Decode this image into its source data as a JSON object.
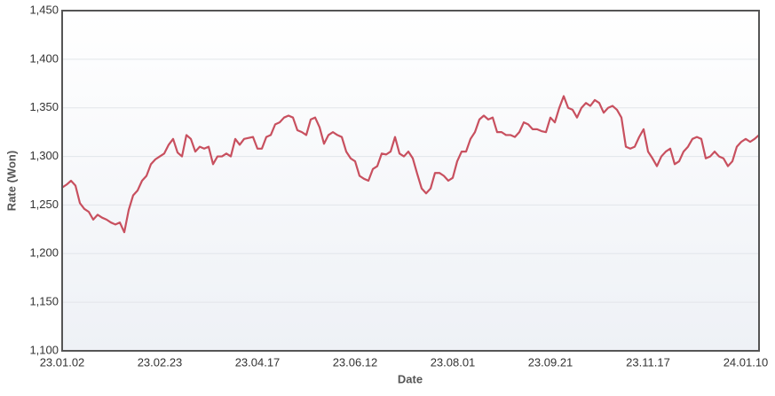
{
  "chart_data": {
    "type": "line",
    "x_label": "Date",
    "y_label": "Rate (Won)",
    "categories": [
      "23.01.02",
      null,
      null,
      null,
      null,
      null,
      null,
      null,
      null,
      null,
      null,
      null,
      null,
      null,
      null,
      null,
      null,
      null,
      null,
      null,
      null,
      null,
      "23.02.23",
      null,
      null,
      null,
      null,
      null,
      null,
      null,
      null,
      null,
      null,
      null,
      null,
      null,
      null,
      null,
      null,
      null,
      null,
      null,
      null,
      null,
      "23.04.17",
      null,
      null,
      null,
      null,
      null,
      null,
      null,
      null,
      null,
      null,
      null,
      null,
      null,
      null,
      null,
      null,
      null,
      null,
      null,
      null,
      null,
      "23.06.12",
      null,
      null,
      null,
      null,
      null,
      null,
      null,
      null,
      null,
      null,
      null,
      null,
      null,
      null,
      null,
      null,
      null,
      null,
      null,
      null,
      null,
      "23.08.01",
      null,
      null,
      null,
      null,
      null,
      null,
      null,
      null,
      null,
      null,
      null,
      null,
      null,
      null,
      null,
      null,
      null,
      null,
      null,
      null,
      null,
      "23.09.21",
      null,
      null,
      null,
      null,
      null,
      null,
      null,
      null,
      null,
      null,
      null,
      null,
      null,
      null,
      null,
      null,
      null,
      null,
      null,
      null,
      null,
      "23.11.17",
      null,
      null,
      null,
      null,
      null,
      null,
      null,
      null,
      null,
      null,
      null,
      null,
      null,
      null,
      null,
      null,
      null,
      null,
      null,
      null,
      null,
      "24.01.10",
      null,
      null,
      null
    ],
    "series": [
      {
        "name": "Rate (Won)",
        "color": "#c8505f",
        "values": [
          1268,
          1271,
          1275,
          1270,
          1252,
          1246,
          1243,
          1235,
          1240,
          1237,
          1235,
          1232,
          1230,
          1232,
          1222,
          1245,
          1260,
          1265,
          1275,
          1280,
          1292,
          1297,
          1300,
          1303,
          1312,
          1318,
          1304,
          1300,
          1322,
          1318,
          1305,
          1310,
          1308,
          1310,
          1292,
          1300,
          1300,
          1303,
          1300,
          1318,
          1312,
          1318,
          1319,
          1320,
          1308,
          1308,
          1320,
          1322,
          1333,
          1335,
          1340,
          1342,
          1340,
          1327,
          1325,
          1322,
          1338,
          1340,
          1330,
          1313,
          1322,
          1325,
          1322,
          1320,
          1305,
          1298,
          1295,
          1280,
          1277,
          1275,
          1287,
          1290,
          1303,
          1302,
          1305,
          1320,
          1303,
          1300,
          1305,
          1298,
          1282,
          1267,
          1262,
          1267,
          1283,
          1283,
          1280,
          1275,
          1278,
          1295,
          1305,
          1305,
          1318,
          1325,
          1338,
          1342,
          1338,
          1340,
          1325,
          1325,
          1322,
          1322,
          1320,
          1325,
          1335,
          1333,
          1328,
          1328,
          1326,
          1325,
          1340,
          1335,
          1350,
          1362,
          1350,
          1348,
          1340,
          1350,
          1355,
          1352,
          1358,
          1355,
          1345,
          1350,
          1352,
          1348,
          1340,
          1310,
          1308,
          1310,
          1320,
          1328,
          1305,
          1298,
          1290,
          1300,
          1305,
          1308,
          1292,
          1295,
          1305,
          1310,
          1318,
          1320,
          1318,
          1298,
          1300,
          1305,
          1300,
          1298,
          1290,
          1295,
          1310,
          1315,
          1318,
          1315,
          1318,
          1322
        ]
      }
    ],
    "ylim": [
      1100,
      1450
    ],
    "yticks": [
      {
        "value": 1100,
        "label": "1,100"
      },
      {
        "value": 1150,
        "label": "1,150"
      },
      {
        "value": 1200,
        "label": "1,200"
      },
      {
        "value": 1250,
        "label": "1,250"
      },
      {
        "value": 1300,
        "label": "1,300"
      },
      {
        "value": 1350,
        "label": "1,350"
      },
      {
        "value": 1400,
        "label": "1,400"
      },
      {
        "value": 1450,
        "label": "1,450"
      }
    ],
    "grid": true
  }
}
